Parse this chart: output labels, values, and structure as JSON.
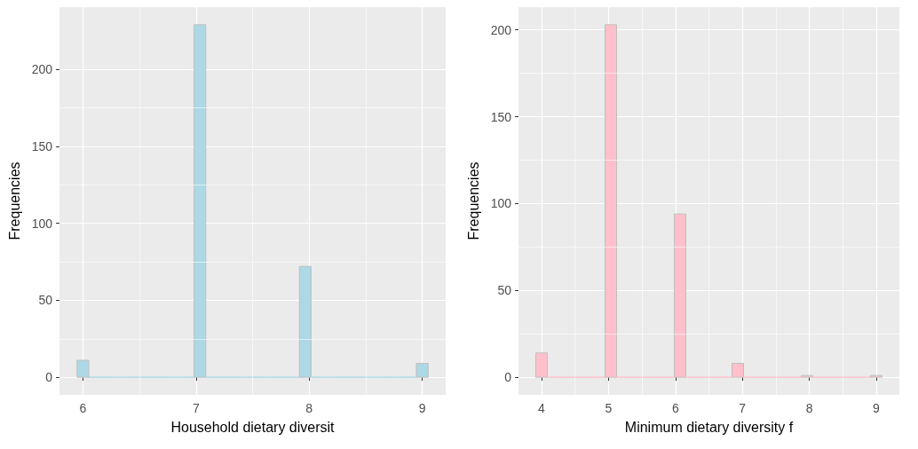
{
  "chart_data": [
    {
      "type": "histogram",
      "xlabel": "Household dietary diversit",
      "ylabel": "Frequencies",
      "color": "#add8e6",
      "bins": [
        5.948,
        6.052,
        6.155,
        6.259,
        6.362,
        6.466,
        6.569,
        6.672,
        6.776,
        6.879,
        6.983,
        7.086,
        7.19,
        7.293,
        7.397,
        7.5,
        7.603,
        7.707,
        7.81,
        7.914,
        8.017,
        8.121,
        8.224,
        8.328,
        8.431,
        8.534,
        8.638,
        8.741,
        8.845,
        8.948,
        9.052
      ],
      "values": [
        11,
        0,
        0,
        0,
        0,
        0,
        0,
        0,
        0,
        0,
        229,
        0,
        0,
        0,
        0,
        0,
        0,
        0,
        0,
        72,
        0,
        0,
        0,
        0,
        0,
        0,
        0,
        0,
        0,
        9
      ],
      "xlim": [
        5.793,
        9.207
      ],
      "xticks": [
        6,
        7,
        8,
        9
      ],
      "ylim": [
        -11.45,
        240.45
      ],
      "yticks": [
        0,
        50,
        100,
        150,
        200
      ],
      "grid": true
    },
    {
      "type": "histogram",
      "xlabel": "Minimum dietary diversity f",
      "ylabel": "Frequencies",
      "color": "#ffc0cb",
      "bins": [
        3.914,
        4.086,
        4.259,
        4.431,
        4.603,
        4.776,
        4.948,
        5.121,
        5.293,
        5.466,
        5.638,
        5.81,
        5.983,
        6.155,
        6.328,
        6.5,
        6.672,
        6.845,
        7.017,
        7.19,
        7.362,
        7.534,
        7.707,
        7.879,
        8.052,
        8.224,
        8.397,
        8.569,
        8.741,
        8.914,
        9.086
      ],
      "values": [
        14,
        0,
        0,
        0,
        0,
        0,
        203,
        0,
        0,
        0,
        0,
        0,
        94,
        0,
        0,
        0,
        0,
        8,
        0,
        0,
        0,
        0,
        0,
        1,
        0,
        0,
        0,
        0,
        0,
        1
      ],
      "xlim": [
        3.655,
        9.345
      ],
      "xticks": [
        4,
        5,
        6,
        7,
        8,
        9
      ],
      "ylim": [
        -10.15,
        213.15
      ],
      "yticks": [
        0,
        50,
        100,
        150,
        200
      ],
      "grid": true
    }
  ]
}
